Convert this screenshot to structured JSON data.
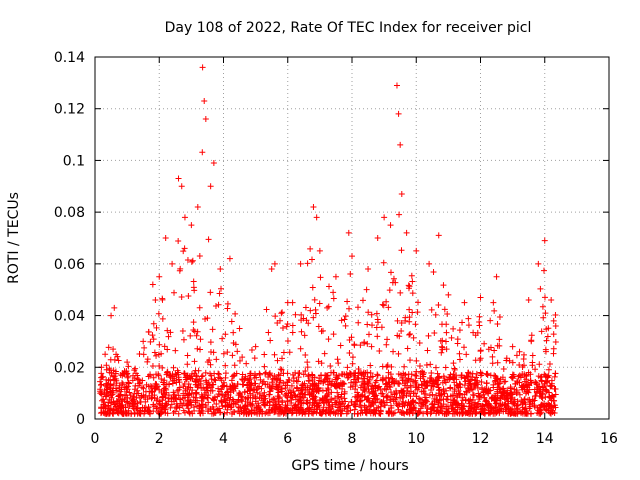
{
  "chart_data": {
    "type": "scatter",
    "title": "Day 108 of 2022, Rate Of TEC Index for receiver picl",
    "xlabel": "GPS time / hours",
    "ylabel": "ROTI / TECUs",
    "xlim": [
      0,
      16
    ],
    "ylim": [
      0,
      0.14
    ],
    "x_ticks": [
      "0",
      "2",
      "4",
      "6",
      "8",
      "10",
      "12",
      "14",
      "16"
    ],
    "y_ticks": [
      "0",
      "0.02",
      "0.04",
      "0.06",
      "0.08",
      "0.1",
      "0.12",
      "0.14"
    ],
    "x_tick_values": [
      0,
      2,
      4,
      6,
      8,
      10,
      12,
      14,
      16
    ],
    "y_tick_values": [
      0,
      0.02,
      0.04,
      0.06,
      0.08,
      0.1,
      0.12,
      0.14
    ],
    "grid": true,
    "marker": "+",
    "marker_color": "#ff0000",
    "data_time_range_hours": [
      0.15,
      14.35
    ],
    "series": [
      {
        "name": "ROTI",
        "note": "dense cloud of points; listed values are representative peaks/envelope",
        "x": [
          0.2,
          0.5,
          0.6,
          1.0,
          1.5,
          1.8,
          2.0,
          2.2,
          2.4,
          2.6,
          2.7,
          2.8,
          3.0,
          3.2,
          3.35,
          3.4,
          3.45,
          3.6,
          3.7,
          3.9,
          4.2,
          4.5,
          5.0,
          5.5,
          5.6,
          6.0,
          6.4,
          6.8,
          6.9,
          7.0,
          7.5,
          7.9,
          8.0,
          8.5,
          8.8,
          9.0,
          9.2,
          9.4,
          9.45,
          9.5,
          9.55,
          9.7,
          10.0,
          10.4,
          10.7,
          11.0,
          11.5,
          12.0,
          12.4,
          12.5,
          13.0,
          13.5,
          13.8,
          14.0,
          14.2
        ],
        "y": [
          0.02,
          0.04,
          0.043,
          0.022,
          0.03,
          0.052,
          0.055,
          0.07,
          0.06,
          0.093,
          0.09,
          0.078,
          0.075,
          0.082,
          0.136,
          0.123,
          0.116,
          0.09,
          0.099,
          0.058,
          0.062,
          0.035,
          0.028,
          0.058,
          0.06,
          0.045,
          0.06,
          0.082,
          0.078,
          0.065,
          0.055,
          0.072,
          0.063,
          0.058,
          0.07,
          0.078,
          0.075,
          0.129,
          0.118,
          0.106,
          0.087,
          0.072,
          0.065,
          0.06,
          0.071,
          0.048,
          0.045,
          0.047,
          0.045,
          0.055,
          0.028,
          0.046,
          0.06,
          0.069,
          0.046
        ]
      }
    ]
  }
}
